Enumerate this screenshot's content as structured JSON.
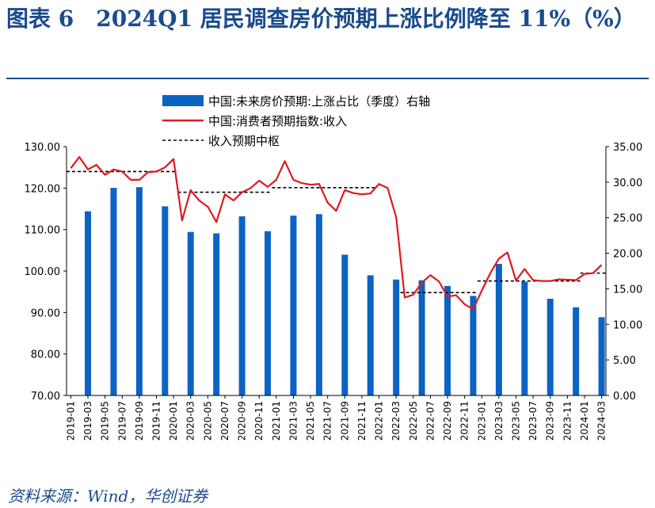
{
  "figure": {
    "title": "图表 6　2024Q1 居民调查房价预期上涨比例降至 11%（%）",
    "source": "资料来源：Wind，华创证券"
  },
  "chart_data": {
    "type": "bar",
    "categories": [
      "2019-01",
      "2019-05",
      "2019-07",
      "2019-09",
      "2019-11",
      "2020-01",
      "2020-03",
      "2020-05",
      "2020-07",
      "2020-09",
      "2020-11",
      "2021-01",
      "2021-03",
      "2021-05",
      "2021-07",
      "2021-09",
      "2021-11",
      "2022-01",
      "2022-03",
      "2022-05",
      "2022-07",
      "2022-09",
      "2022-11",
      "2023-01",
      "2023-03",
      "2023-05",
      "2023-07",
      "2023-09",
      "2023-11",
      "2024-01",
      "2024-03"
    ],
    "x_axis": {
      "tick_labels": [
        "2019-01",
        "2019-03",
        "2019-05",
        "2019-07",
        "2019-09",
        "2019-11",
        "2020-01",
        "2020-03",
        "2020-05",
        "2020-07",
        "2020-09",
        "2020-11",
        "2021-01",
        "2021-03",
        "2021-05",
        "2021-07",
        "2021-09",
        "2021-11",
        "2022-01",
        "2022-03",
        "2022-05",
        "2022-07",
        "2022-09",
        "2022-11",
        "2023-01",
        "2023-03",
        "2023-05",
        "2023-07",
        "2023-09",
        "2023-11",
        "2024-01",
        "2024-03"
      ],
      "start": "2019-01",
      "end": "2024-03"
    },
    "y_left": {
      "ylim": [
        70,
        130
      ],
      "ticks": [
        "70.00",
        "80.00",
        "90.00",
        "100.00",
        "110.00",
        "120.00",
        "130.00"
      ]
    },
    "y_right": {
      "ylim": [
        0,
        35
      ],
      "ticks": [
        "0.00",
        "5.00",
        "10.00",
        "15.00",
        "20.00",
        "25.00",
        "30.00",
        "35.00"
      ]
    },
    "legend": {
      "position": "top"
    },
    "series": [
      {
        "name": "中国:未来房价预期:上涨占比（季度）右轴",
        "kind": "bar",
        "axis": "right",
        "color": "#0b63c4",
        "points": [
          {
            "x": "2019-03",
            "y": 25.9
          },
          {
            "x": "2019-06",
            "y": 29.2
          },
          {
            "x": "2019-09",
            "y": 29.3
          },
          {
            "x": "2019-12",
            "y": 26.6
          },
          {
            "x": "2020-03",
            "y": 23.0
          },
          {
            "x": "2020-06",
            "y": 22.8
          },
          {
            "x": "2020-09",
            "y": 25.2
          },
          {
            "x": "2020-12",
            "y": 23.1
          },
          {
            "x": "2021-03",
            "y": 25.3
          },
          {
            "x": "2021-06",
            "y": 25.5
          },
          {
            "x": "2021-09",
            "y": 19.8
          },
          {
            "x": "2021-12",
            "y": 16.9
          },
          {
            "x": "2022-03",
            "y": 16.3
          },
          {
            "x": "2022-06",
            "y": 16.2
          },
          {
            "x": "2022-09",
            "y": 15.4
          },
          {
            "x": "2022-12",
            "y": 14.0
          },
          {
            "x": "2023-03",
            "y": 18.5
          },
          {
            "x": "2023-06",
            "y": 16.0
          },
          {
            "x": "2023-09",
            "y": 13.6
          },
          {
            "x": "2023-12",
            "y": 12.4
          },
          {
            "x": "2024-03",
            "y": 11.0
          }
        ]
      },
      {
        "name": "中国:消费者预期指数:收入",
        "kind": "line",
        "axis": "left",
        "color": "#e0191f",
        "points": [
          {
            "x": "2019-01",
            "y": 124.8
          },
          {
            "x": "2019-02",
            "y": 127.5
          },
          {
            "x": "2019-03",
            "y": 124.5
          },
          {
            "x": "2019-04",
            "y": 125.6
          },
          {
            "x": "2019-05",
            "y": 123.2
          },
          {
            "x": "2019-06",
            "y": 124.5
          },
          {
            "x": "2019-07",
            "y": 124.0
          },
          {
            "x": "2019-08",
            "y": 122.0
          },
          {
            "x": "2019-09",
            "y": 122.0
          },
          {
            "x": "2019-10",
            "y": 123.8
          },
          {
            "x": "2019-11",
            "y": 124.0
          },
          {
            "x": "2019-12",
            "y": 125.0
          },
          {
            "x": "2020-01",
            "y": 127.0
          },
          {
            "x": "2020-02",
            "y": 112.2
          },
          {
            "x": "2020-03",
            "y": 119.5
          },
          {
            "x": "2020-04",
            "y": 117.0
          },
          {
            "x": "2020-05",
            "y": 115.5
          },
          {
            "x": "2020-06",
            "y": 111.8
          },
          {
            "x": "2020-07",
            "y": 118.5
          },
          {
            "x": "2020-08",
            "y": 117.0
          },
          {
            "x": "2020-09",
            "y": 119.0
          },
          {
            "x": "2020-10",
            "y": 120.0
          },
          {
            "x": "2020-11",
            "y": 121.8
          },
          {
            "x": "2020-12",
            "y": 120.3
          },
          {
            "x": "2021-01",
            "y": 122.0
          },
          {
            "x": "2021-02",
            "y": 126.5
          },
          {
            "x": "2021-03",
            "y": 122.0
          },
          {
            "x": "2021-04",
            "y": 121.2
          },
          {
            "x": "2021-05",
            "y": 120.8
          },
          {
            "x": "2021-06",
            "y": 121.0
          },
          {
            "x": "2021-07",
            "y": 116.5
          },
          {
            "x": "2021-08",
            "y": 114.5
          },
          {
            "x": "2021-09",
            "y": 119.5
          },
          {
            "x": "2021-10",
            "y": 118.8
          },
          {
            "x": "2021-11",
            "y": 118.5
          },
          {
            "x": "2021-12",
            "y": 118.7
          },
          {
            "x": "2022-01",
            "y": 121.0
          },
          {
            "x": "2022-02",
            "y": 120.0
          },
          {
            "x": "2022-03",
            "y": 113.0
          },
          {
            "x": "2022-04",
            "y": 93.6
          },
          {
            "x": "2022-05",
            "y": 94.3
          },
          {
            "x": "2022-06",
            "y": 97.2
          },
          {
            "x": "2022-07",
            "y": 99.0
          },
          {
            "x": "2022-08",
            "y": 97.5
          },
          {
            "x": "2022-09",
            "y": 93.8
          },
          {
            "x": "2022-10",
            "y": 94.2
          },
          {
            "x": "2022-11",
            "y": 92.0
          },
          {
            "x": "2022-12",
            "y": 90.8
          },
          {
            "x": "2023-01",
            "y": 95.3
          },
          {
            "x": "2023-02",
            "y": 99.5
          },
          {
            "x": "2023-03",
            "y": 103.0
          },
          {
            "x": "2023-04",
            "y": 104.5
          },
          {
            "x": "2023-05",
            "y": 97.7
          },
          {
            "x": "2023-06",
            "y": 100.5
          },
          {
            "x": "2023-07",
            "y": 97.8
          },
          {
            "x": "2023-08",
            "y": 97.6
          },
          {
            "x": "2023-09",
            "y": 97.6
          },
          {
            "x": "2023-10",
            "y": 98.0
          },
          {
            "x": "2023-11",
            "y": 97.9
          },
          {
            "x": "2023-12",
            "y": 97.8
          },
          {
            "x": "2024-01",
            "y": 99.3
          },
          {
            "x": "2024-02",
            "y": 99.5
          },
          {
            "x": "2024-03",
            "y": 101.5
          }
        ]
      },
      {
        "name": "收入预期中枢",
        "kind": "dashed",
        "axis": "left",
        "color": "#000000",
        "segments": [
          {
            "x0": "2019-01",
            "x1": "2020-01",
            "y": 124.0
          },
          {
            "x0": "2020-02",
            "x1": "2020-12",
            "y": 119.0
          },
          {
            "x0": "2021-01",
            "x1": "2021-12",
            "y": 120.1
          },
          {
            "x0": "2022-04",
            "x1": "2022-12",
            "y": 94.8
          },
          {
            "x0": "2023-01",
            "x1": "2023-12",
            "y": 97.6
          },
          {
            "x0": "2024-01",
            "x1": "2024-03",
            "y": 99.5
          }
        ]
      }
    ]
  }
}
